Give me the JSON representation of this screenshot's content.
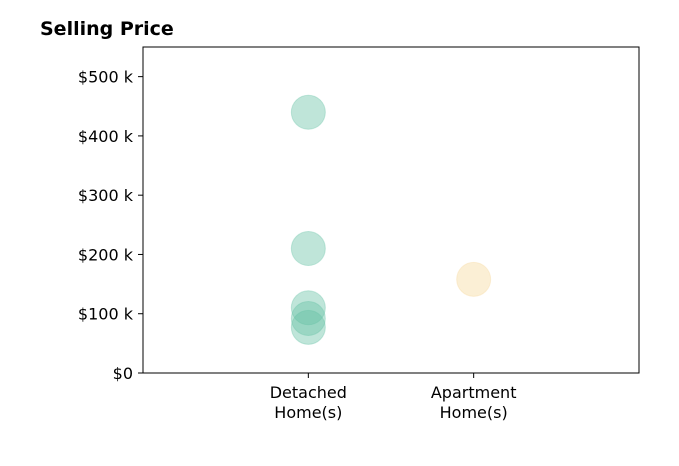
{
  "chart_data": {
    "type": "scatter",
    "title": "Selling Price",
    "xlabel": "",
    "ylabel": "",
    "categories": [
      "Detached\nHome(s)",
      "Apartment\nHome(s)"
    ],
    "x_range": [
      -1,
      2
    ],
    "ylim": [
      0,
      550000
    ],
    "y_ticks": [
      {
        "value": 0,
        "label": "$0"
      },
      {
        "value": 100000,
        "label": "$100 k"
      },
      {
        "value": 200000,
        "label": "$200 k"
      },
      {
        "value": 300000,
        "label": "$300 k"
      },
      {
        "value": 400000,
        "label": "$400 k"
      },
      {
        "value": 500000,
        "label": "$500 k"
      }
    ],
    "series": [
      {
        "category_index": 0,
        "color": "#66c2a5",
        "values": [
          440000,
          210000,
          110000,
          92000,
          77000
        ]
      },
      {
        "category_index": 1,
        "color": "#f6d89a",
        "values": [
          158000
        ]
      }
    ],
    "grid": false,
    "legend": "none"
  }
}
